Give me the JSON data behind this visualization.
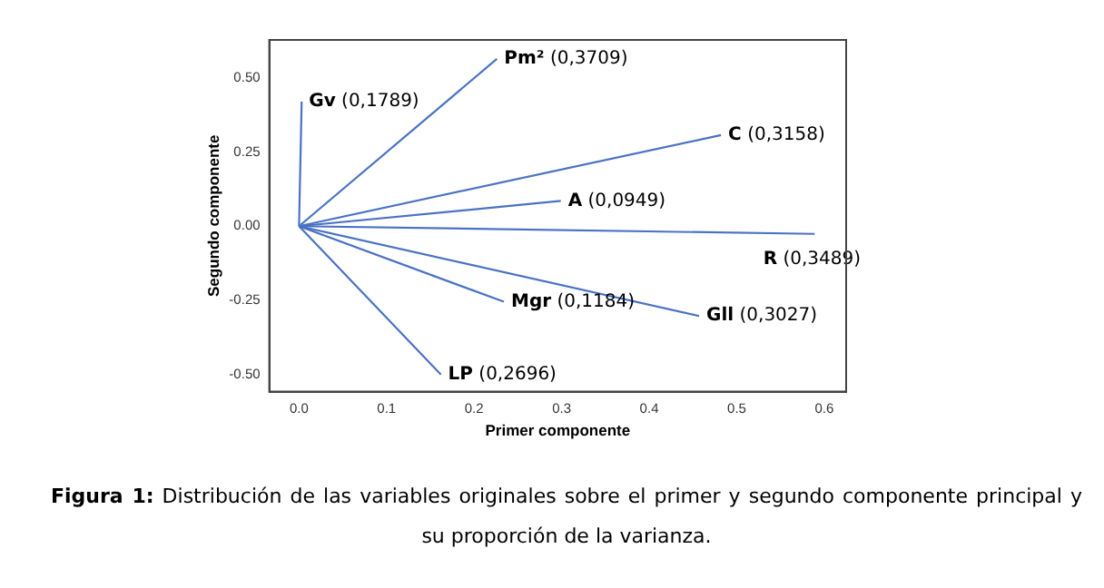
{
  "chart_data": {
    "type": "line",
    "xlabel": "Primer componente",
    "ylabel": "Segundo componente",
    "xlim": [
      -0.034,
      0.625
    ],
    "ylim": [
      -0.558,
      0.628
    ],
    "xticks": [
      {
        "value": 0,
        "label": "0.0"
      },
      {
        "value": 0.1,
        "label": "0.1"
      },
      {
        "value": 0.2,
        "label": "0.2"
      },
      {
        "value": 0.3,
        "label": "0.3"
      },
      {
        "value": 0.4,
        "label": "0.4"
      },
      {
        "value": 0.5,
        "label": "0.5"
      },
      {
        "value": 0.6,
        "label": "0.6"
      }
    ],
    "yticks": [
      {
        "value": -0.5,
        "label": "-0.50"
      },
      {
        "value": -0.25,
        "label": "-0.25"
      },
      {
        "value": 0,
        "label": "0.00"
      },
      {
        "value": 0.25,
        "label": "0.25"
      },
      {
        "value": 0.5,
        "label": "0.50"
      }
    ],
    "series": [
      {
        "color": "#4a72c4",
        "x": [
          0,
          0.003
        ],
        "values": [
          0,
          0.42
        ]
      },
      {
        "color": "#4a72c4",
        "x": [
          0,
          0.226
        ],
        "values": [
          0,
          0.564
        ]
      },
      {
        "color": "#4a72c4",
        "x": [
          0,
          0.482
        ],
        "values": [
          0,
          0.307
        ]
      },
      {
        "color": "#4a72c4",
        "x": [
          0,
          0.299
        ],
        "values": [
          0,
          0.085
        ]
      },
      {
        "color": "#4a72c4",
        "x": [
          0,
          0.589
        ],
        "values": [
          0,
          -0.026
        ]
      },
      {
        "color": "#4a72c4",
        "x": [
          0,
          0.457
        ],
        "values": [
          0,
          -0.303
        ]
      },
      {
        "color": "#4a72c4",
        "x": [
          0,
          0.234
        ],
        "values": [
          0,
          -0.255
        ]
      },
      {
        "color": "#4a72c4",
        "x": [
          0,
          0.162
        ],
        "values": [
          0,
          -0.5
        ]
      }
    ],
    "annotations": [
      {
        "text": "Gv (0,1789)",
        "x": 0.003,
        "y": 0.42
      },
      {
        "text": "Pm² (0,3709)",
        "x": 0.226,
        "y": 0.564
      },
      {
        "text": "C (0,3158)",
        "x": 0.482,
        "y": 0.307
      },
      {
        "text": "A (0,0949)",
        "x": 0.299,
        "y": 0.085
      },
      {
        "text": "R (0,3489)",
        "x": 0.589,
        "y": -0.026
      },
      {
        "text": "Mgr (0,1184)",
        "x": 0.234,
        "y": -0.255
      },
      {
        "text": "Gll (0,3027)",
        "x": 0.457,
        "y": -0.303
      },
      {
        "text": "LP (0,2696)",
        "x": 0.162,
        "y": -0.5
      },
      "Figura 1: Distribución de las variables originales sobre el primer y segundo componente principal y su proporción de la varianza."
    ],
    "marker": "none",
    "line_style": "solid",
    "grid": false,
    "legend": false
  }
}
